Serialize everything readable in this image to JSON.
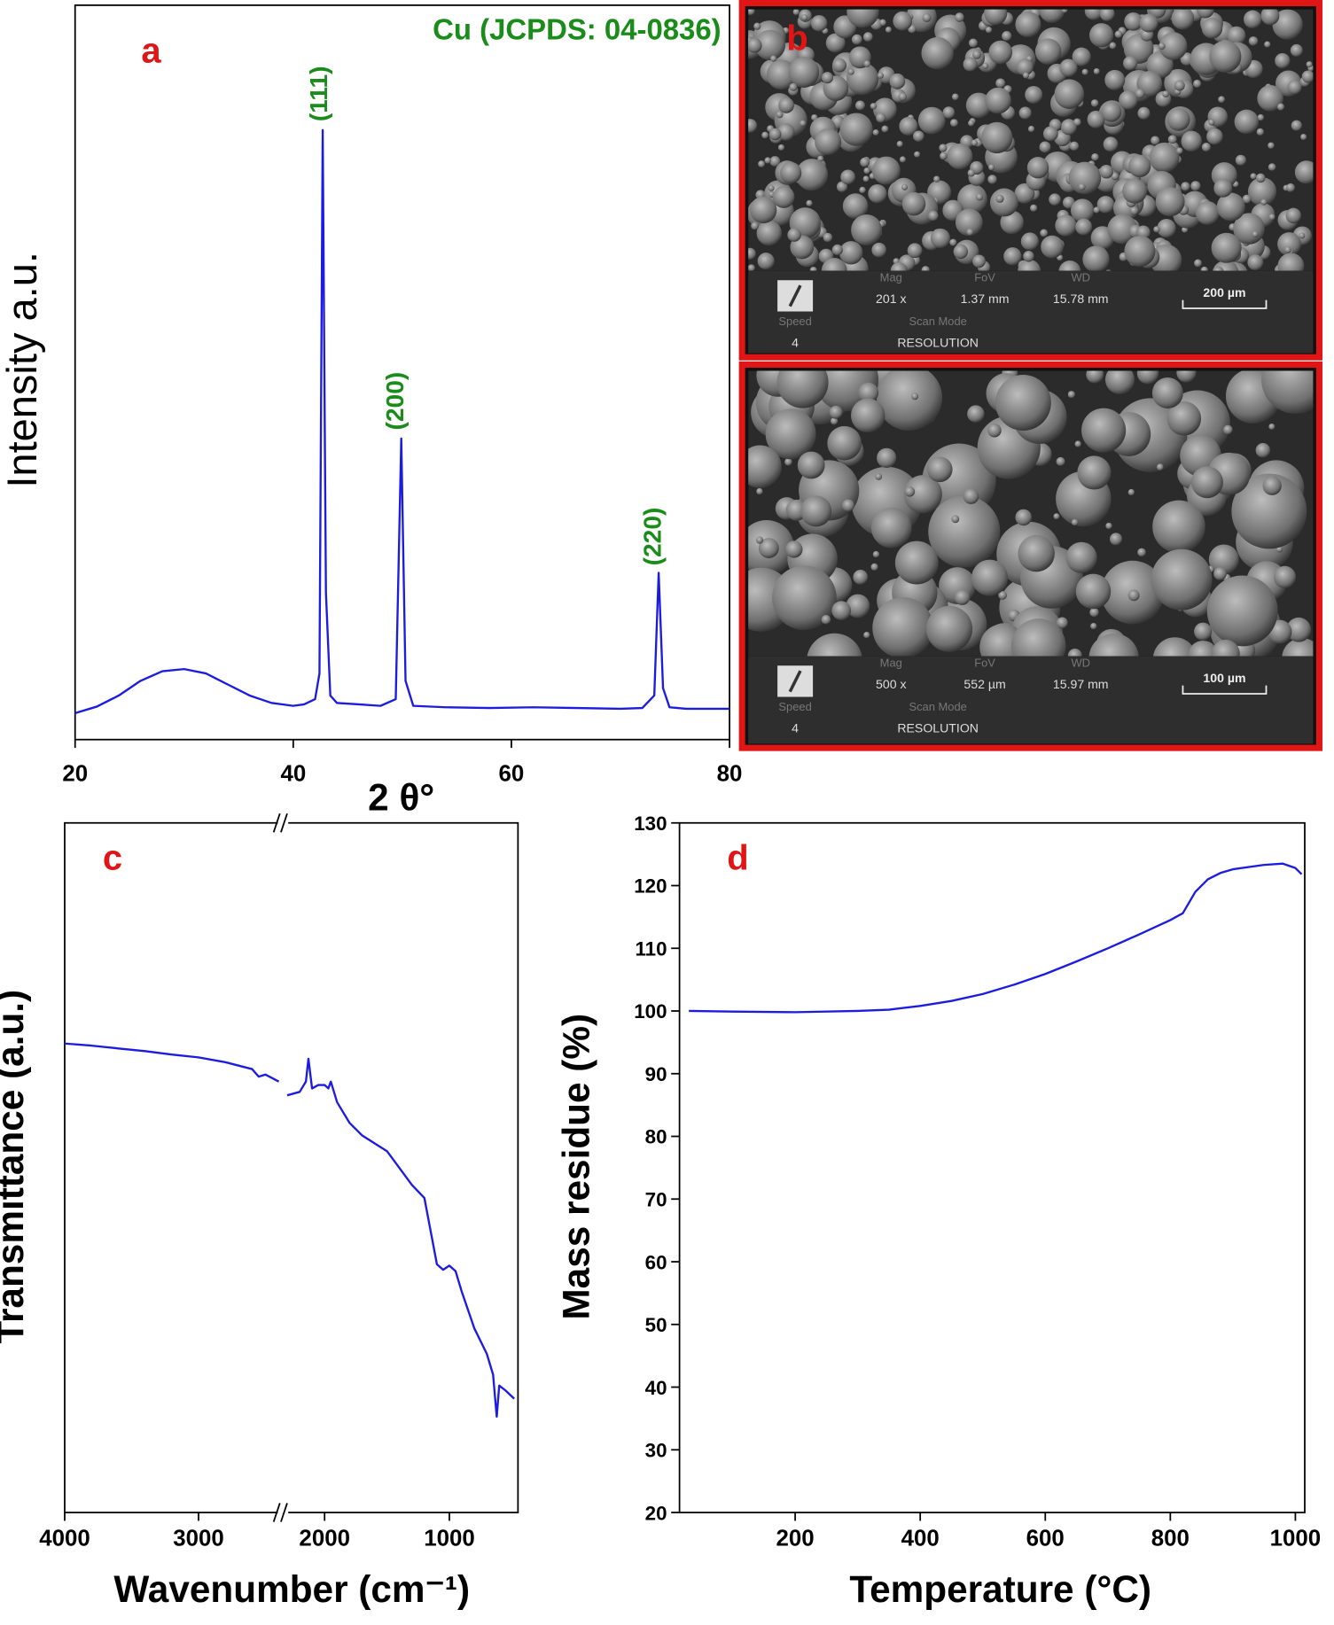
{
  "chart_data": [
    {
      "type": "line",
      "panel_label": "a",
      "annotation": "Cu (JCPDS: 04-0836)",
      "peak_labels": [
        "(111)",
        "(200)",
        "(220)"
      ],
      "x_label": "2 θ°",
      "y_label": "Intensity  a.u.",
      "x": [
        20,
        22,
        24,
        26,
        28,
        30,
        32,
        34,
        36,
        38,
        40,
        41,
        42,
        42.4,
        42.7,
        43.0,
        43.4,
        44,
        46,
        48,
        49.4,
        49.9,
        50.3,
        51,
        54,
        58,
        62,
        66,
        70,
        72,
        73.1,
        73.5,
        73.9,
        74.5,
        76,
        80
      ],
      "series": [
        {
          "color": "#1c1ce0",
          "values": [
            3.6,
            4.5,
            6.0,
            8.0,
            9.3,
            9.6,
            9.0,
            7.5,
            6.0,
            5.0,
            4.6,
            4.8,
            5.5,
            9,
            83,
            20,
            6,
            5,
            4.8,
            4.6,
            5.5,
            41,
            8,
            4.6,
            4.4,
            4.3,
            4.4,
            4.3,
            4.2,
            4.3,
            6,
            22.7,
            7,
            4.4,
            4.2,
            4.2
          ]
        }
      ],
      "xlim": [
        20,
        80
      ],
      "ylim": [
        0,
        100
      ],
      "xticks": [
        20,
        40,
        60,
        80
      ]
    },
    {
      "type": "line",
      "panel_label": "c",
      "x_label": "Wavenumber (cm⁻¹)",
      "y_label": "Transmittance (a.u.)",
      "x": [
        4000,
        3800,
        3600,
        3400,
        3200,
        3000,
        2800,
        2600,
        2550,
        2500,
        2400,
        2350,
        2300,
        2200,
        2150,
        2130,
        2100,
        2050,
        2000,
        1970,
        1950,
        1900,
        1800,
        1700,
        1500,
        1300,
        1200,
        1100,
        1050,
        1000,
        950,
        900,
        800,
        700,
        650,
        620,
        600,
        550,
        480
      ],
      "series": [
        {
          "color": "#1c1ce0",
          "values": [
            68,
            67.7,
            67.3,
            66.9,
            66.4,
            66,
            65.3,
            64.3,
            63.2,
            63.5,
            62.5,
            null,
            60.5,
            61,
            62.5,
            65.8,
            61.5,
            62,
            62,
            61.5,
            62.5,
            59.5,
            56.5,
            54.7,
            52.4,
            47.5,
            45.6,
            36,
            35.2,
            35.8,
            35,
            32,
            26.7,
            23,
            20,
            13.9,
            18.4,
            17.7,
            16.5
          ]
        }
      ],
      "xlim": [
        4000,
        450
      ],
      "x_break": [
        2400,
        2300
      ],
      "ylim": [
        0,
        100
      ],
      "xticks": [
        4000,
        3000,
        2000,
        1000
      ]
    },
    {
      "type": "line",
      "panel_label": "d",
      "x_label": "Temperature (°C)",
      "y_label": "Mass residue (%)",
      "x": [
        30,
        100,
        200,
        300,
        350,
        400,
        450,
        500,
        550,
        600,
        650,
        700,
        750,
        800,
        820,
        840,
        860,
        880,
        900,
        950,
        980,
        1000,
        1010
      ],
      "series": [
        {
          "color": "#1c1ce0",
          "values": [
            100,
            99.9,
            99.8,
            100,
            100.2,
            100.8,
            101.6,
            102.7,
            104.2,
            105.9,
            107.9,
            110,
            112.2,
            114.5,
            115.6,
            119,
            121,
            122,
            122.6,
            123.3,
            123.5,
            122.8,
            121.8
          ]
        }
      ],
      "xlim": [
        15,
        1015
      ],
      "ylim": [
        20,
        130
      ],
      "xticks": [
        200,
        400,
        600,
        800,
        1000
      ],
      "yticks": [
        20,
        30,
        40,
        50,
        60,
        70,
        80,
        90,
        100,
        110,
        120,
        130
      ]
    }
  ],
  "sem_panel": {
    "label": "b",
    "images": [
      {
        "fields": [
          [
            "Mag",
            "201 x"
          ],
          [
            "FoV",
            "1.37 mm"
          ],
          [
            "WD",
            "15.78 mm"
          ],
          [
            "Speed",
            "4"
          ],
          [
            "Scan Mode",
            "RESOLUTION"
          ]
        ],
        "scale_bar": "200 µm"
      },
      {
        "fields": [
          [
            "Mag",
            "500 x"
          ],
          [
            "FoV",
            "552 µm"
          ],
          [
            "WD",
            "15.97 mm"
          ],
          [
            "Speed",
            "4"
          ],
          [
            "Scan Mode",
            "RESOLUTION"
          ]
        ],
        "scale_bar": "100 µm"
      }
    ]
  }
}
